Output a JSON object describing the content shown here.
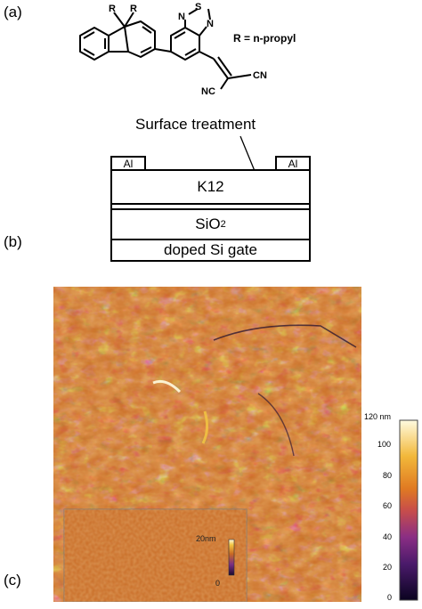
{
  "panels": {
    "a": "(a)",
    "b": "(b)",
    "c": "(c)"
  },
  "molecule": {
    "substituent_note": "R = n-propyl",
    "atom_labels": [
      "R",
      "R",
      "S",
      "N",
      "N",
      "CN",
      "NC"
    ]
  },
  "device": {
    "annotation": "Surface treatment",
    "contact_left": "Al",
    "contact_right": "Al",
    "layer_k12": "K12",
    "layer_oxide_base": "SiO",
    "layer_oxide_sub": "2",
    "layer_gate": "doped Si gate"
  },
  "afm": {
    "colorbar_unit_top": "120 nm",
    "colorbar_ticks": [
      "100",
      "80",
      "60",
      "40",
      "20",
      "0"
    ],
    "inset_scale_top": "20nm",
    "inset_scale_bottom": "0",
    "colors": {
      "dark": "#1a0a2e",
      "purple": "#7a2f84",
      "orange": "#c96a23",
      "yellow": "#f2c542",
      "white": "#fffbe0"
    }
  }
}
